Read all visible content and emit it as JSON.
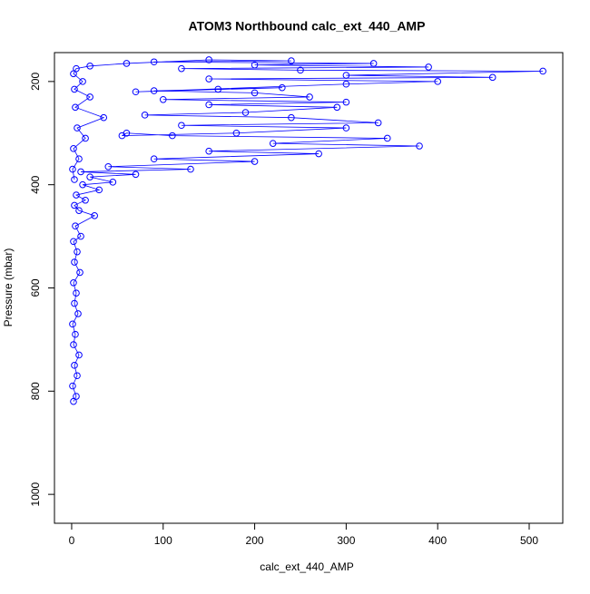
{
  "chart_data": {
    "type": "line",
    "title": "ATOM3 Northbound calc_ext_440_AMP",
    "xlabel": "calc_ext_440_AMP",
    "ylabel": "Pressure (mbar)",
    "color": "#0000ff",
    "x": [
      2,
      5,
      1,
      6,
      3,
      8,
      2,
      4,
      1,
      7,
      3,
      5,
      2,
      9,
      3,
      6,
      2,
      10,
      4,
      25,
      8,
      3,
      15,
      5,
      30,
      12,
      45,
      20,
      70,
      10,
      130,
      40,
      200,
      90,
      270,
      150,
      380,
      220,
      345,
      110,
      60,
      55,
      180,
      300,
      120,
      335,
      240,
      80,
      190,
      290,
      150,
      300,
      100,
      260,
      200,
      90,
      160,
      230,
      70,
      300,
      400,
      150,
      460,
      300,
      515,
      250,
      120,
      390,
      200,
      330,
      90,
      240,
      150,
      60,
      20,
      5,
      2,
      12,
      3,
      20,
      4,
      35,
      6,
      15,
      2,
      8,
      1,
      3
    ],
    "values": [
      820,
      810,
      790,
      770,
      750,
      730,
      710,
      690,
      670,
      650,
      630,
      610,
      590,
      570,
      550,
      530,
      510,
      500,
      480,
      460,
      450,
      440,
      430,
      420,
      410,
      400,
      395,
      385,
      380,
      375,
      370,
      365,
      355,
      350,
      340,
      335,
      325,
      320,
      310,
      305,
      300,
      305,
      300,
      290,
      285,
      280,
      270,
      265,
      260,
      250,
      245,
      240,
      235,
      230,
      222,
      218,
      215,
      212,
      220,
      205,
      200,
      195,
      192,
      188,
      180,
      178,
      175,
      172,
      168,
      165,
      162,
      160,
      158,
      165,
      170,
      175,
      185,
      200,
      215,
      230,
      250,
      270,
      290,
      310,
      330,
      350,
      370,
      390
    ],
    "xlim": [
      -18.8,
      536.7
    ],
    "ylim": [
      1056,
      144
    ],
    "xticks": [
      0,
      100,
      200,
      300,
      400,
      500
    ],
    "yticks": [
      200,
      400,
      600,
      800,
      1000
    ]
  }
}
